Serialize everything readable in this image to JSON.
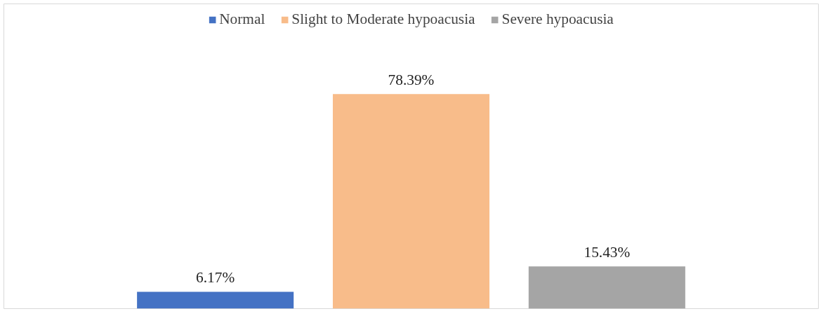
{
  "chart_data": {
    "type": "bar",
    "categories": [
      null
    ],
    "legend": "top",
    "series": [
      {
        "name": "Normal",
        "color": "#4472c4",
        "values": [
          6.17
        ],
        "value_labels": [
          "6.17%"
        ]
      },
      {
        "name": "Slight to Moderate hypoacusia",
        "color": "#f8bc8a",
        "values": [
          78.39
        ],
        "value_labels": [
          "78.39%"
        ]
      },
      {
        "name": "Severe hypoacusia",
        "color": "#a5a5a5",
        "values": [
          15.43
        ],
        "value_labels": [
          "15.43%"
        ]
      }
    ]
  }
}
